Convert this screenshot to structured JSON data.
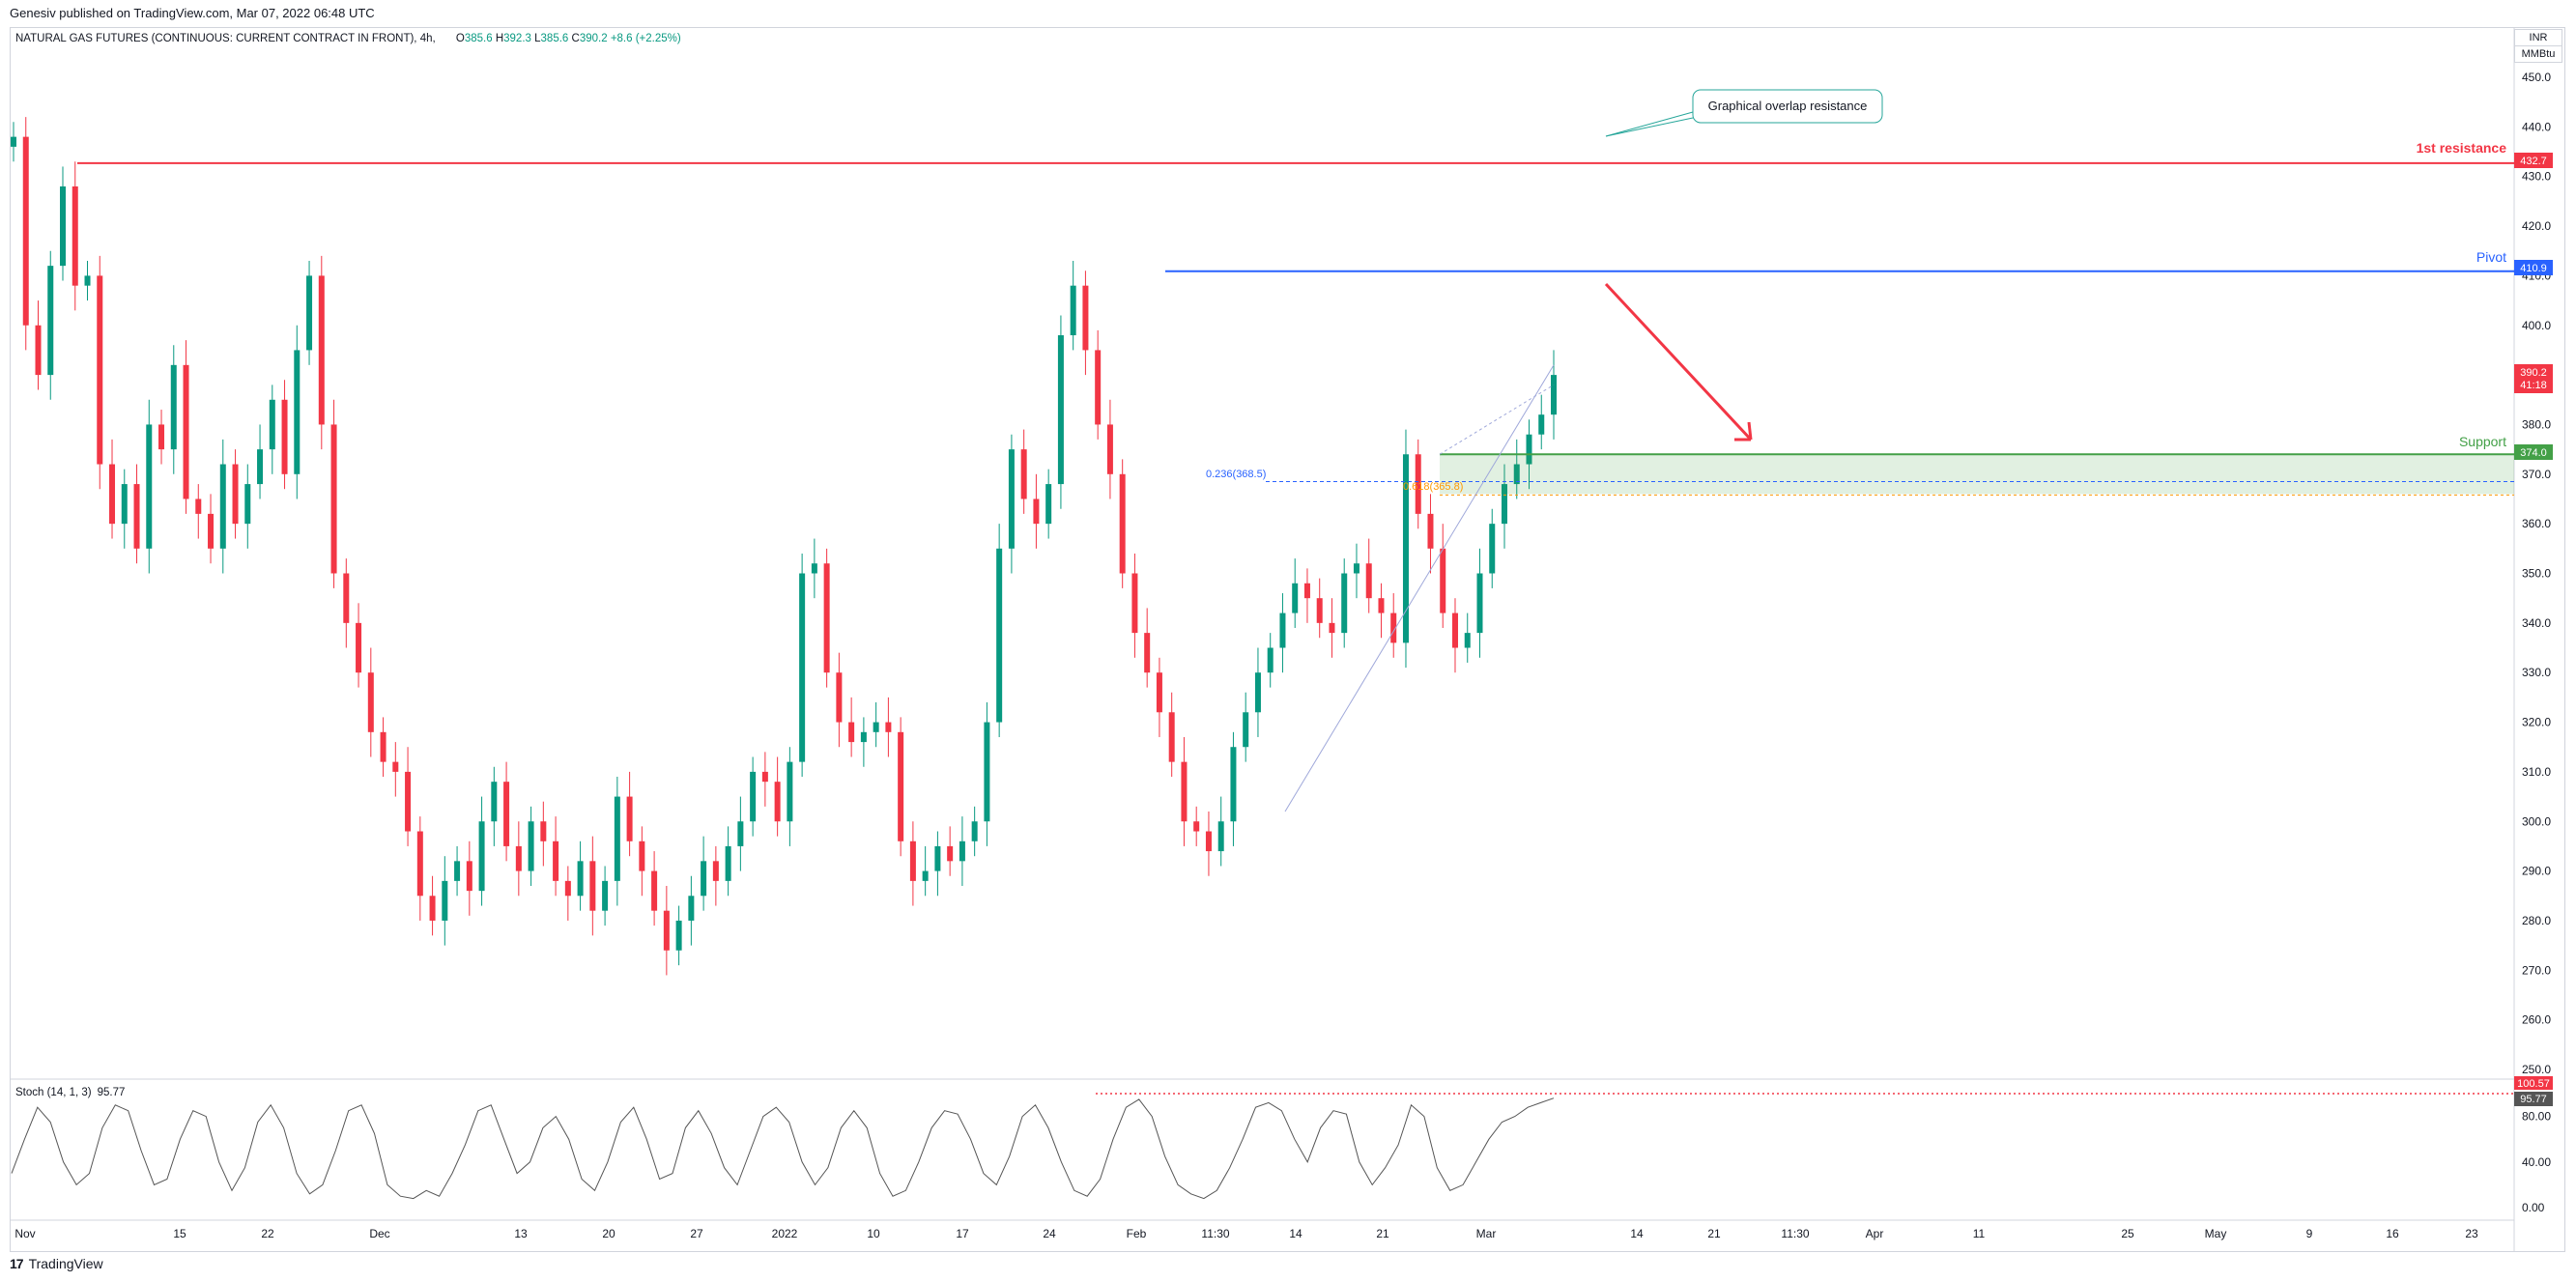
{
  "publish_line": "Genesiv published on TradingView.com, Mar 07, 2022 06:48 UTC",
  "legend": {
    "symbol": "NATURAL GAS FUTURES (CONTINUOUS: CURRENT CONTRACT IN FRONT), 4h,",
    "open_label": "O",
    "open": "385.6",
    "high_label": "H",
    "high": "392.3",
    "low_label": "L",
    "low": "385.6",
    "close_label": "C",
    "close": "390.2",
    "change": "+8.6 (+2.25%)"
  },
  "units": {
    "currency": "INR",
    "unit": "MMBtu"
  },
  "stoch_legend": {
    "name": "Stoch (14, 1, 3)",
    "value": "95.77"
  },
  "footer_brand": {
    "logo": "17",
    "name": "TradingView"
  },
  "colors": {
    "up": "#089981",
    "down": "#f23645",
    "resistance": "#f23645",
    "pivot": "#2962ff",
    "support": "#43a047",
    "fib": "#2962ff",
    "fib2": "#ff9800",
    "stoch": "#555555"
  },
  "chart_data": [
    {
      "type": "candlestick",
      "timeframe": "4h",
      "y_axis": {
        "min": 250,
        "max": 450,
        "ticks": [
          250,
          260,
          270,
          280,
          290,
          300,
          310,
          320,
          330,
          340,
          350,
          360,
          370,
          380,
          390,
          400,
          410,
          420,
          430,
          440,
          450
        ],
        "tick_labels": [
          "250.0",
          "260.0",
          "270.0",
          "280.0",
          "290.0",
          "300.0",
          "310.0",
          "320.0",
          "330.0",
          "340.0",
          "350.0",
          "360.0",
          "370.0",
          "380.0",
          "390.0",
          "400.0",
          "410.0",
          "420.0",
          "430.0",
          "440.0",
          "450.0"
        ]
      },
      "x_axis": {
        "tick_labels": [
          "Nov",
          "15",
          "22",
          "Dec",
          "13",
          "20",
          "27",
          "2022",
          "10",
          "17",
          "24",
          "Feb",
          "11:30",
          "14",
          "21",
          "Mar",
          "14",
          "21",
          "11:30",
          "Apr",
          "11",
          "25",
          "May",
          "9",
          "16",
          "23"
        ]
      },
      "price_path": [
        [
          "Nov",
          438
        ],
        [
          "Nov",
          400
        ],
        [
          "Nov",
          390
        ],
        [
          "Nov",
          412
        ],
        [
          "Nov",
          428
        ],
        [
          "Nov",
          408
        ],
        [
          "Nov",
          410
        ],
        [
          "Nov",
          372
        ],
        [
          "Nov",
          360
        ],
        [
          "Nov",
          368
        ],
        [
          "15",
          355
        ],
        [
          "15",
          380
        ],
        [
          "15",
          375
        ],
        [
          "15",
          392
        ],
        [
          "15",
          365
        ],
        [
          "15",
          362
        ],
        [
          "15",
          355
        ],
        [
          "22",
          372
        ],
        [
          "22",
          360
        ],
        [
          "22",
          368
        ],
        [
          "22",
          375
        ],
        [
          "22",
          385
        ],
        [
          "22",
          370
        ],
        [
          "22",
          395
        ],
        [
          "22",
          410
        ],
        [
          "22",
          380
        ],
        [
          "Dec",
          350
        ],
        [
          "Dec",
          340
        ],
        [
          "Dec",
          330
        ],
        [
          "Dec",
          318
        ],
        [
          "Dec",
          312
        ],
        [
          "Dec",
          310
        ],
        [
          "Dec",
          298
        ],
        [
          "Dec",
          285
        ],
        [
          "Dec",
          280
        ],
        [
          "13",
          288
        ],
        [
          "13",
          292
        ],
        [
          "13",
          286
        ],
        [
          "13",
          300
        ],
        [
          "13",
          308
        ],
        [
          "13",
          295
        ],
        [
          "20",
          290
        ],
        [
          "20",
          300
        ],
        [
          "20",
          296
        ],
        [
          "20",
          288
        ],
        [
          "20",
          285
        ],
        [
          "27",
          292
        ],
        [
          "27",
          282
        ],
        [
          "27",
          288
        ],
        [
          "27",
          305
        ],
        [
          "27",
          296
        ],
        [
          "27",
          290
        ],
        [
          "27",
          282
        ],
        [
          "2022",
          274
        ],
        [
          "2022",
          280
        ],
        [
          "2022",
          285
        ],
        [
          "2022",
          292
        ],
        [
          "2022",
          288
        ],
        [
          "2022",
          295
        ],
        [
          "10",
          300
        ],
        [
          "10",
          310
        ],
        [
          "10",
          308
        ],
        [
          "10",
          300
        ],
        [
          "10",
          312
        ],
        [
          "10",
          350
        ],
        [
          "10",
          352
        ],
        [
          "17",
          330
        ],
        [
          "17",
          320
        ],
        [
          "17",
          316
        ],
        [
          "17",
          318
        ],
        [
          "17",
          320
        ],
        [
          "24",
          318
        ],
        [
          "24",
          296
        ],
        [
          "24",
          288
        ],
        [
          "24",
          290
        ],
        [
          "24",
          295
        ],
        [
          "24",
          292
        ],
        [
          "24",
          296
        ],
        [
          "24",
          300
        ],
        [
          "Feb",
          320
        ],
        [
          "Feb",
          355
        ],
        [
          "Feb",
          375
        ],
        [
          "Feb",
          365
        ],
        [
          "Feb",
          360
        ],
        [
          "Feb",
          368
        ],
        [
          "Feb",
          398
        ],
        [
          "Feb",
          408
        ],
        [
          "Feb",
          395
        ],
        [
          "Feb",
          380
        ],
        [
          "Feb",
          370
        ],
        [
          "11:30",
          350
        ],
        [
          "11:30",
          338
        ],
        [
          "11:30",
          330
        ],
        [
          "11:30",
          322
        ],
        [
          "11:30",
          312
        ],
        [
          "11:30",
          300
        ],
        [
          "14",
          298
        ],
        [
          "14",
          294
        ],
        [
          "14",
          300
        ],
        [
          "14",
          315
        ],
        [
          "14",
          322
        ],
        [
          "14",
          330
        ],
        [
          "14",
          335
        ],
        [
          "21",
          342
        ],
        [
          "21",
          348
        ],
        [
          "21",
          345
        ],
        [
          "21",
          340
        ],
        [
          "21",
          338
        ],
        [
          "21",
          350
        ],
        [
          "21",
          352
        ],
        [
          "21",
          345
        ],
        [
          "21",
          342
        ],
        [
          "21",
          336
        ],
        [
          "21",
          374
        ],
        [
          "21",
          362
        ],
        [
          "21",
          355
        ],
        [
          "Mar",
          342
        ],
        [
          "Mar",
          335
        ],
        [
          "Mar",
          338
        ],
        [
          "Mar",
          350
        ],
        [
          "Mar",
          360
        ],
        [
          "Mar",
          368
        ],
        [
          "Mar",
          372
        ],
        [
          "Mar",
          378
        ],
        [
          "Mar",
          382
        ],
        [
          "Mar",
          390
        ]
      ],
      "stochastic": {
        "name": "Stoch (14, 1, 3)",
        "last_value": 95.77,
        "y_ticks": [
          0,
          40,
          80,
          100
        ],
        "y_tick_labels": [
          "0.00",
          "40.00",
          "80.00",
          "100.57"
        ],
        "values": [
          30,
          60,
          88,
          75,
          40,
          20,
          30,
          70,
          90,
          85,
          50,
          20,
          25,
          60,
          85,
          80,
          40,
          15,
          35,
          75,
          90,
          70,
          30,
          12,
          20,
          50,
          85,
          90,
          65,
          20,
          10,
          8,
          15,
          10,
          30,
          55,
          85,
          90,
          60,
          30,
          40,
          70,
          80,
          60,
          25,
          15,
          40,
          75,
          88,
          60,
          25,
          30,
          70,
          85,
          65,
          35,
          20,
          50,
          80,
          88,
          75,
          40,
          20,
          35,
          70,
          85,
          70,
          30,
          10,
          15,
          40,
          70,
          85,
          82,
          60,
          30,
          20,
          45,
          80,
          90,
          70,
          40,
          15,
          10,
          25,
          60,
          88,
          95,
          80,
          45,
          20,
          12,
          8,
          15,
          35,
          60,
          88,
          92,
          85,
          60,
          40,
          70,
          85,
          82,
          40,
          20,
          35,
          55,
          90,
          80,
          35,
          15,
          20,
          40,
          60,
          75,
          80,
          88,
          92,
          96
        ]
      }
    }
  ],
  "annotations": {
    "resistance": {
      "label": "1st resistance",
      "price": 432.7,
      "price_label": "432.7"
    },
    "pivot": {
      "label": "Pivot",
      "price": 410.9,
      "price_label": "410.9"
    },
    "support": {
      "label": "Support",
      "price": 374.0,
      "price_label": "374.0",
      "zone_low": 366
    },
    "fib_236": {
      "label": "0.236(368.5)",
      "price": 368.5
    },
    "fib_618": {
      "label": "0.618(365.8)",
      "price": 365.8
    },
    "current": {
      "price": 390.2,
      "price_label": "390.2",
      "countdown": "41:18"
    },
    "callout": "Graphical overlap resistance",
    "stoch_current_label": "95.77",
    "stoch_upper_label": "100.57"
  }
}
